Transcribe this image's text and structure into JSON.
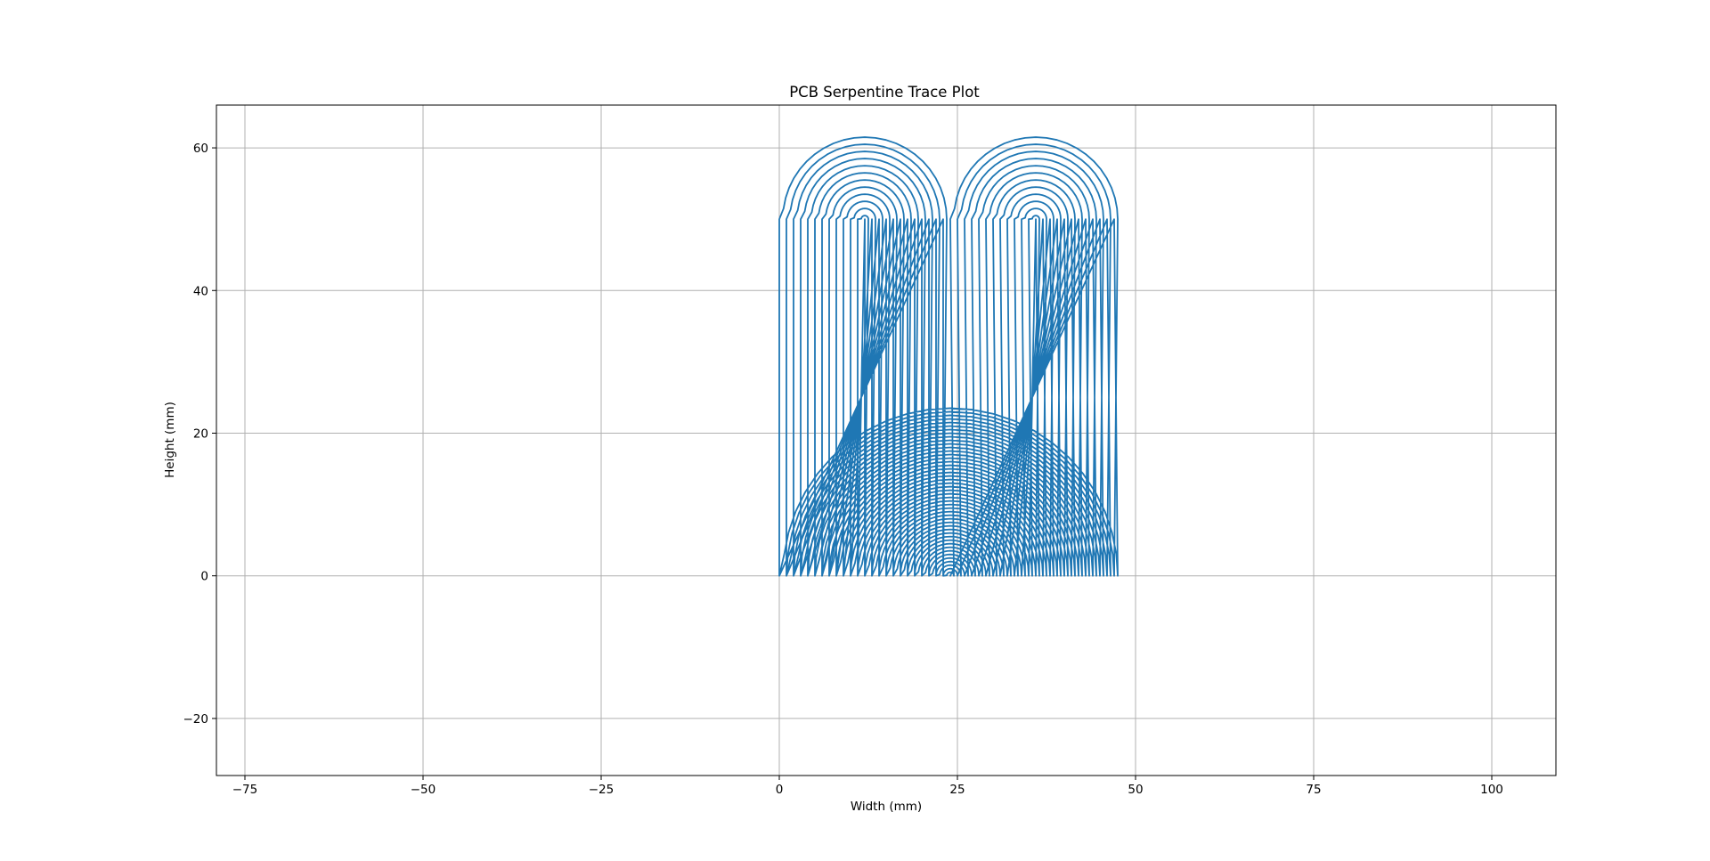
{
  "chart_data": {
    "type": "line",
    "title": "PCB Serpentine Trace Plot",
    "xlabel": "Width (mm)",
    "ylabel": "Height (mm)",
    "xlim": [
      -79,
      109
    ],
    "ylim": [
      -28,
      66
    ],
    "xticks": [
      -75,
      -50,
      -25,
      0,
      25,
      50,
      75,
      100
    ],
    "yticks": [
      -20,
      0,
      20,
      40,
      60
    ],
    "xtick_labels": [
      "−75",
      "−50",
      "−25",
      "0",
      "25",
      "50",
      "75",
      "100"
    ],
    "ytick_labels": [
      "−20",
      "0",
      "20",
      "40",
      "60"
    ],
    "grid": true,
    "series": [
      {
        "color": "#1f77b4",
        "trace": {
          "start_x": 0,
          "top_y": 50,
          "bottom_y": 0,
          "straight_trace_count": 48,
          "trace_pitch_mm": 1.0,
          "left_fold_center_x": 12,
          "right_fold_center_x": 36,
          "bottom_fold_center_x": 24,
          "top_fold_max_radius": 11.5,
          "bottom_fold_max_radius": 23.5
        }
      }
    ]
  }
}
